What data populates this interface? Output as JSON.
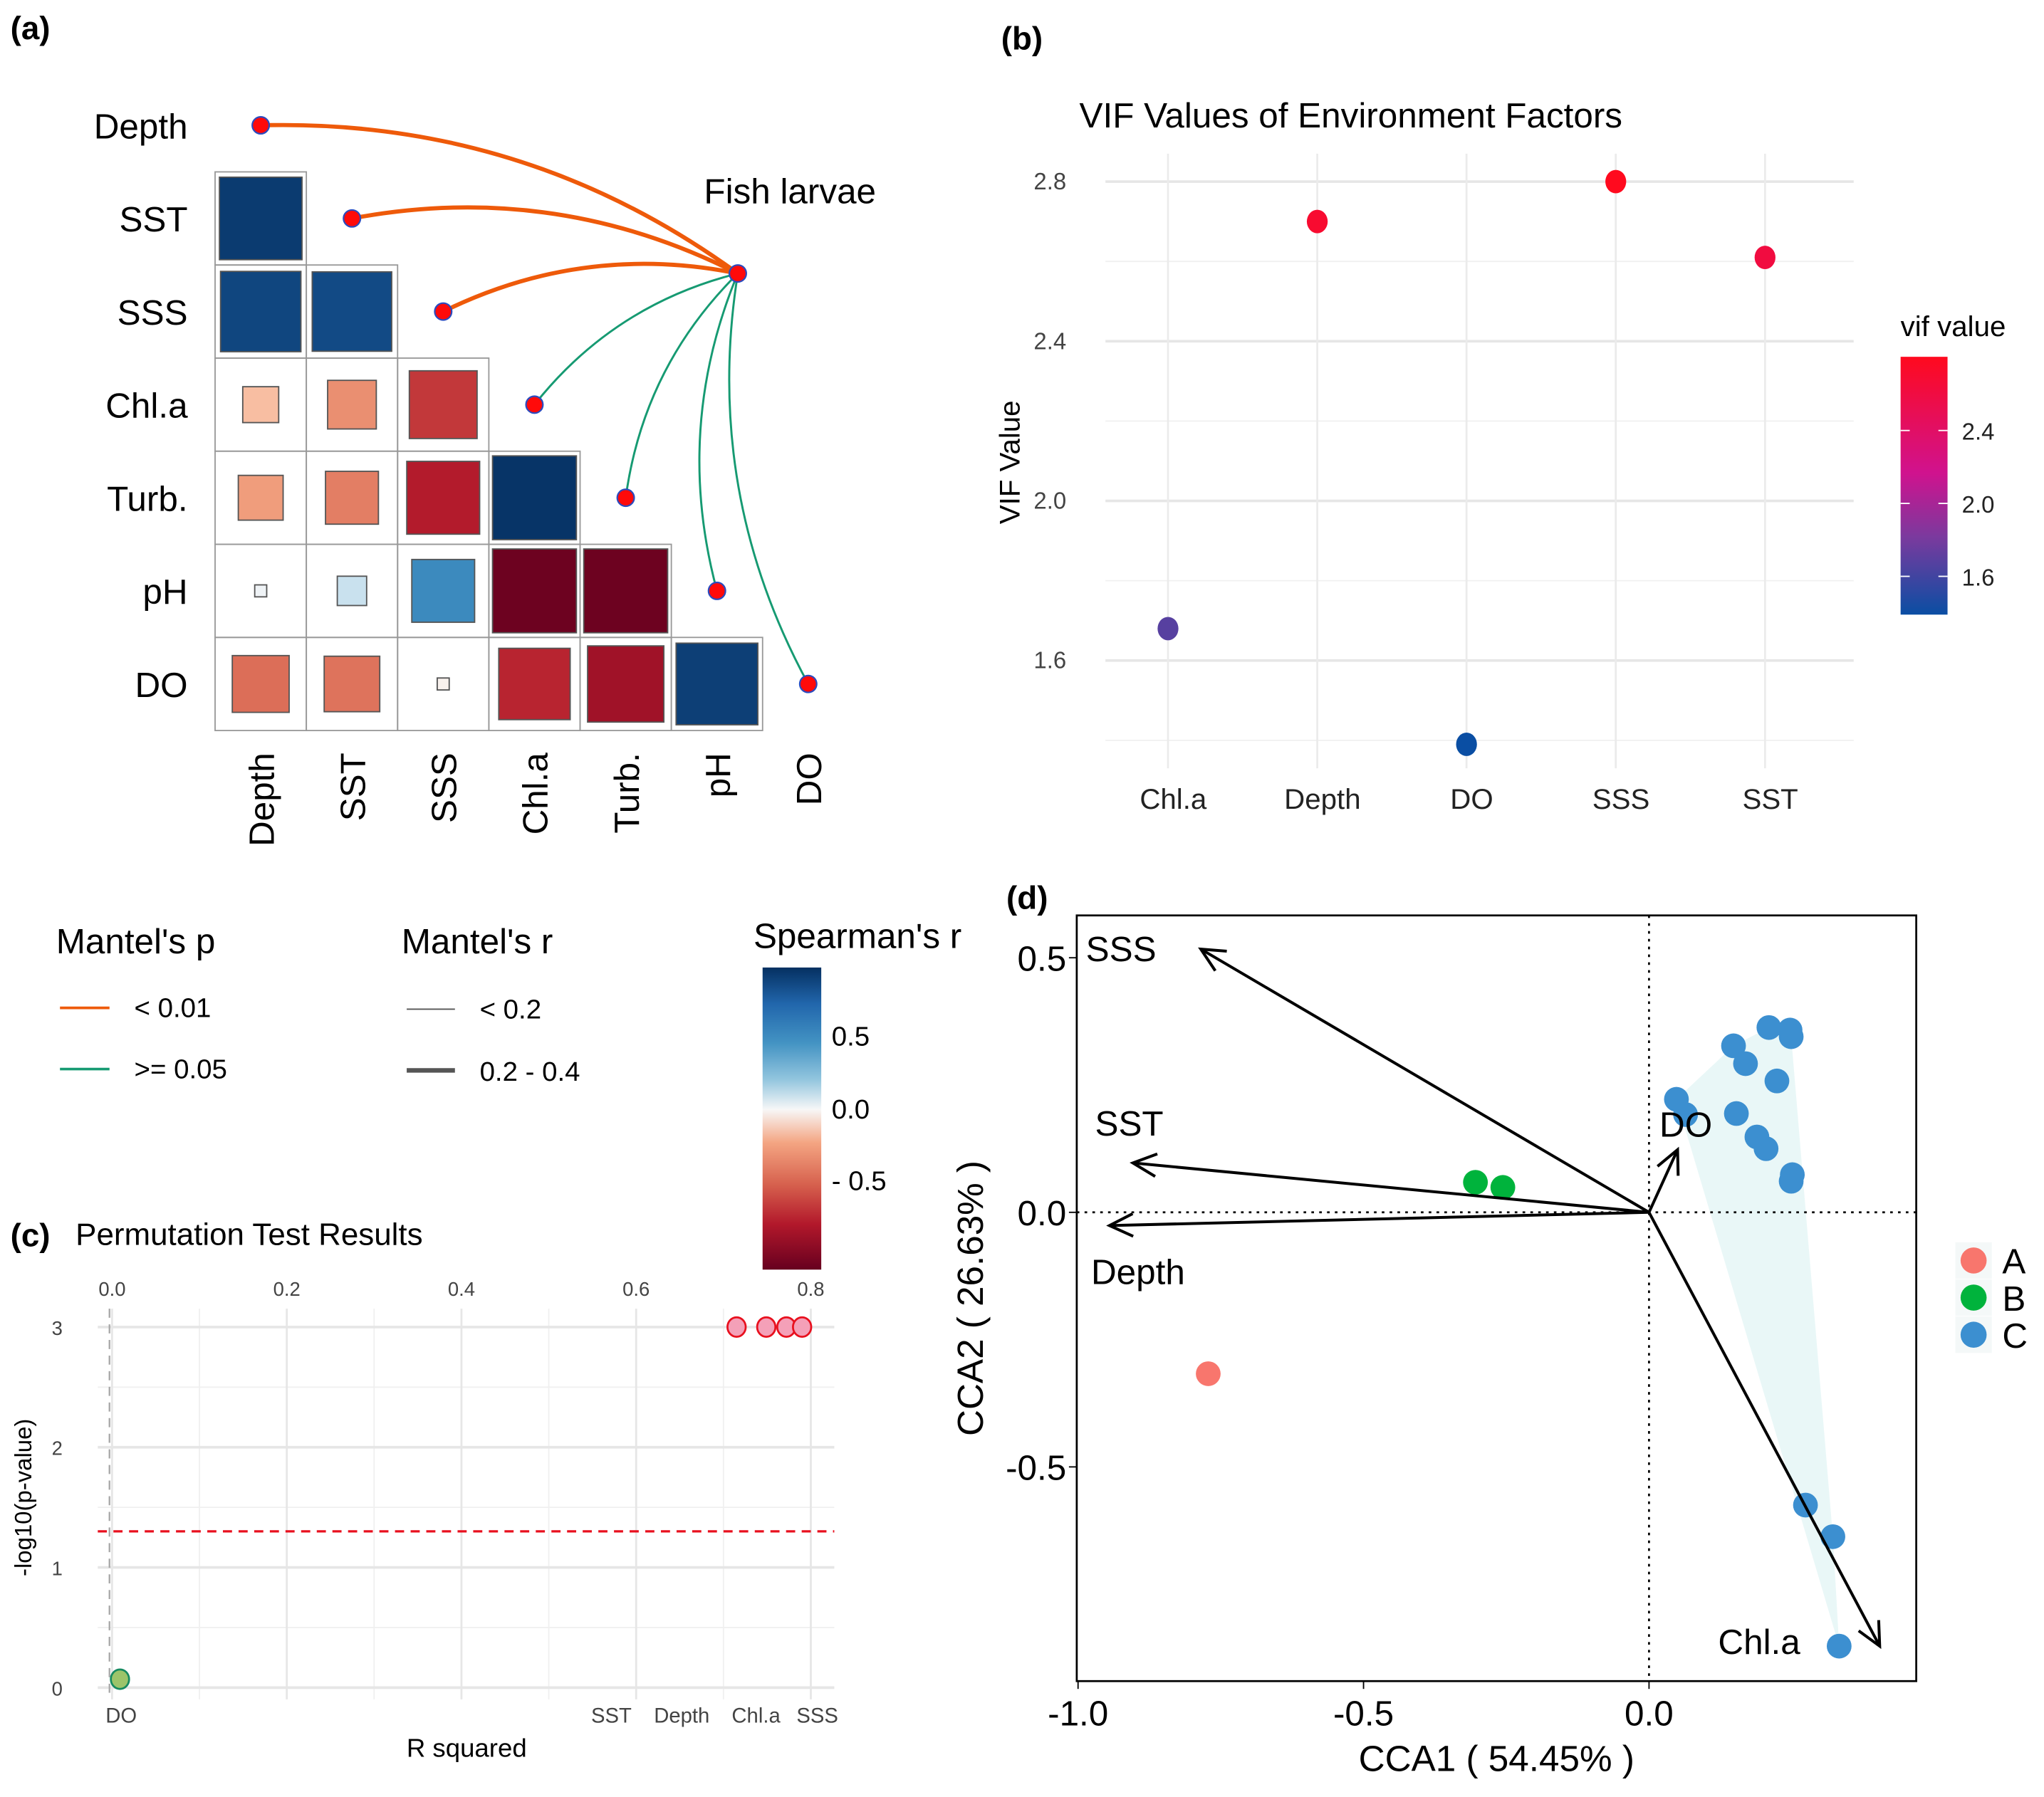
{
  "panel_labels": {
    "a": "(a)",
    "b": "(b)",
    "c": "(c)",
    "d": "(d)"
  },
  "chart_data": [
    {
      "panel": "a",
      "type": "heatmap",
      "variables": [
        "Depth",
        "SST",
        "SSS",
        "Chl.a",
        "Turb.",
        "pH",
        "DO"
      ],
      "correlations": [
        {
          "row": "SST",
          "col": "Depth",
          "r": 0.95
        },
        {
          "row": "SSS",
          "col": "Depth",
          "r": 0.9
        },
        {
          "row": "SSS",
          "col": "SST",
          "r": 0.88
        },
        {
          "row": "Chl.a",
          "col": "Depth",
          "r": -0.18
        },
        {
          "row": "Chl.a",
          "col": "SST",
          "r": -0.33
        },
        {
          "row": "Chl.a",
          "col": "SSS",
          "r": -0.64
        },
        {
          "row": "Turb.",
          "col": "Depth",
          "r": -0.28
        },
        {
          "row": "Turb.",
          "col": "SST",
          "r": -0.39
        },
        {
          "row": "Turb.",
          "col": "SSS",
          "r": -0.74
        },
        {
          "row": "Turb.",
          "col": "Chl.a",
          "r": 0.98
        },
        {
          "row": "pH",
          "col": "Depth",
          "r": 0.02
        },
        {
          "row": "pH",
          "col": "SST",
          "r": 0.12
        },
        {
          "row": "pH",
          "col": "SSS",
          "r": 0.55
        },
        {
          "row": "pH",
          "col": "Chl.a",
          "r": -0.98
        },
        {
          "row": "pH",
          "col": "Turb.",
          "r": -0.98
        },
        {
          "row": "DO",
          "col": "Depth",
          "r": -0.45
        },
        {
          "row": "DO",
          "col": "SST",
          "r": -0.43
        },
        {
          "row": "DO",
          "col": "SSS",
          "r": -0.02
        },
        {
          "row": "DO",
          "col": "Chl.a",
          "r": -0.71
        },
        {
          "row": "DO",
          "col": "Turb.",
          "r": -0.81
        },
        {
          "row": "DO",
          "col": "pH",
          "r": 0.93
        }
      ],
      "target": "Fish larvae",
      "mantel": [
        {
          "env": "Depth",
          "p": "< 0.01",
          "r": "0.2 - 0.4"
        },
        {
          "env": "SST",
          "p": "< 0.01",
          "r": "0.2 - 0.4"
        },
        {
          "env": "SSS",
          "p": "< 0.01",
          "r": "0.2 - 0.4"
        },
        {
          "env": "Chl.a",
          "p": ">= 0.05",
          "r": "< 0.2"
        },
        {
          "env": "Turb.",
          "p": ">= 0.05",
          "r": "< 0.2"
        },
        {
          "env": "pH",
          "p": ">= 0.05",
          "r": "< 0.2"
        },
        {
          "env": "DO",
          "p": ">= 0.05",
          "r": "< 0.2"
        }
      ],
      "legend": {
        "mantel_p_title": "Mantel's p",
        "mantel_p_items": [
          {
            "label": "< 0.01",
            "color": "#EE5A0A"
          },
          {
            "label": ">= 0.05",
            "color": "#169A72"
          }
        ],
        "mantel_r_title": "Mantel's r",
        "mantel_r_items": [
          {
            "label": "< 0.2"
          },
          {
            "label": "0.2 - 0.4"
          }
        ],
        "spearman_title": "Spearman's r",
        "spearman_ticks": [
          "0.5",
          "0.0",
          "- 0.5"
        ]
      }
    },
    {
      "panel": "b",
      "type": "scatter",
      "title": "VIF Values of Environment Factors",
      "xlabel": "",
      "ylabel": "VIF Value",
      "categories": [
        "Chl.a",
        "Depth",
        "DO",
        "SSS",
        "SST"
      ],
      "values": [
        1.68,
        2.7,
        1.39,
        2.8,
        2.61
      ],
      "yticks": [
        "1.6",
        "2.0",
        "2.4",
        "2.8"
      ],
      "ylim": [
        1.33,
        2.87
      ],
      "grid": true,
      "legend": {
        "title": "vif value",
        "ticks": [
          "1.6",
          "2.0",
          "2.4"
        ],
        "low_color": "#0A4EA3",
        "mid_color": "#C8168E",
        "high_color": "#FF0A1E",
        "position": "right"
      }
    },
    {
      "panel": "c",
      "type": "scatter",
      "title": "Permutation Test Results",
      "xlabel": "R squared",
      "ylabel": "-log10(p-value)",
      "xticks": [
        "0.0",
        "0.2",
        "0.4",
        "0.6",
        "0.8"
      ],
      "yticks": [
        "0",
        "1",
        "2",
        "3"
      ],
      "xlim": [
        -0.003,
        0.83
      ],
      "ylim": [
        -0.1,
        3.15
      ],
      "threshold": 1.3,
      "grid": true,
      "points": [
        {
          "name": "DO",
          "r2": 0.009,
          "neg_log_p": 0.07,
          "significant": false
        },
        {
          "name": "SST",
          "r2": 0.715,
          "neg_log_p": 3.0,
          "significant": true
        },
        {
          "name": "Depth",
          "r2": 0.749,
          "neg_log_p": 3.0,
          "significant": true
        },
        {
          "name": "Chl.a",
          "r2": 0.772,
          "neg_log_p": 3.0,
          "significant": true
        },
        {
          "name": "SSS",
          "r2": 0.79,
          "neg_log_p": 3.0,
          "significant": true
        }
      ],
      "colors": {
        "significant_fill": "#F4A0B8",
        "significant_stroke": "#E8101E",
        "ns_fill": "#9CC46A",
        "ns_stroke": "#168A60",
        "threshold": "#E8101E"
      }
    },
    {
      "panel": "d",
      "type": "scatter",
      "xlabel": "CCA1 ( 54.45% )",
      "ylabel": "CCA2 ( 26.63% )",
      "xticks": [
        "-1.0",
        "-0.5",
        "0.0"
      ],
      "yticks": [
        "-0.5",
        "0.0",
        "0.5"
      ],
      "xlim": [
        -1.0,
        0.47
      ],
      "ylim": [
        -0.92,
        0.58
      ],
      "arrows": [
        {
          "name": "SSS",
          "x": -0.785,
          "y": 0.517
        },
        {
          "name": "SST",
          "x": -0.904,
          "y": 0.097
        },
        {
          "name": "Depth",
          "x": -0.945,
          "y": -0.026
        },
        {
          "name": "DO",
          "x": 0.05,
          "y": 0.123
        },
        {
          "name": "Chl.a",
          "x": 0.404,
          "y": -0.852
        }
      ],
      "series": [
        {
          "name": "A",
          "color": "#F8766D",
          "points": [
            [
              -0.772,
              -0.317
            ]
          ]
        },
        {
          "name": "B",
          "color": "#00B33C",
          "points": [
            [
              -0.304,
              0.059
            ],
            [
              -0.256,
              0.049
            ]
          ]
        },
        {
          "name": "C",
          "color": "#3C8FD0",
          "points": [
            [
              0.048,
              0.222
            ],
            [
              0.064,
              0.192
            ],
            [
              0.148,
              0.327
            ],
            [
              0.169,
              0.292
            ],
            [
              0.21,
              0.363
            ],
            [
              0.247,
              0.358
            ],
            [
              0.249,
              0.345
            ],
            [
              0.224,
              0.258
            ],
            [
              0.153,
              0.194
            ],
            [
              0.189,
              0.148
            ],
            [
              0.205,
              0.125
            ],
            [
              0.251,
              0.074
            ],
            [
              0.249,
              0.061
            ],
            [
              0.274,
              -0.575
            ],
            [
              0.322,
              -0.637
            ],
            [
              0.333,
              -0.852
            ]
          ]
        }
      ],
      "legend_position": "right"
    }
  ]
}
